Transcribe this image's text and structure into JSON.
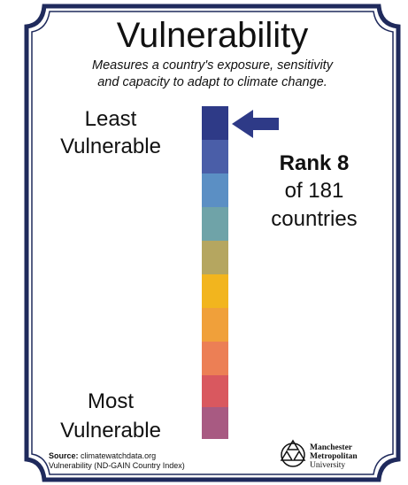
{
  "header": {
    "title": "Vulnerability",
    "subtitle": [
      "Measures a country's exposure, sensitivity",
      "and capacity to adapt to climate change."
    ]
  },
  "scale": {
    "top_label": [
      "Least",
      "Vulnerable"
    ],
    "bottom_label": [
      "Most",
      "Vulnerable"
    ]
  },
  "rank": {
    "headline": "Rank 8",
    "lines": [
      "of 181",
      "countries"
    ]
  },
  "source": {
    "label": "Source:",
    "site": "climatewatchdata.org",
    "dataset": "Vulnerability (ND-GAIN Country Index)"
  },
  "logo": {
    "lines": [
      "Manchester",
      "Metropolitan",
      "University"
    ]
  }
}
